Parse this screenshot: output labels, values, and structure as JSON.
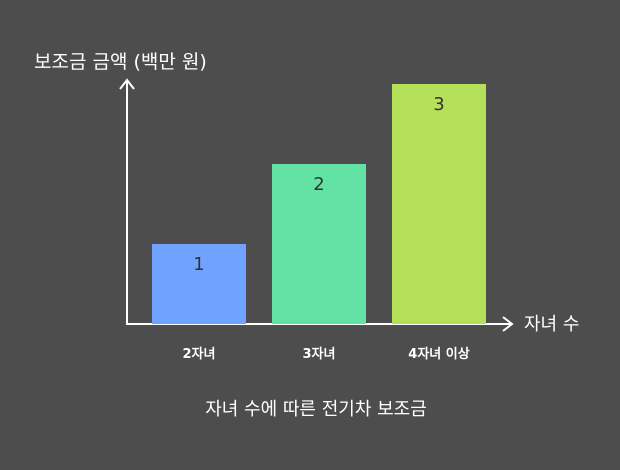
{
  "chart_data": {
    "type": "bar",
    "title": "자녀 수에 따른 전기차 보조금",
    "xlabel": "자녀 수",
    "ylabel": "보조금 금액 (백만 원)",
    "categories": [
      "2자녀",
      "3자녀",
      "4자녀 이상"
    ],
    "values": [
      1,
      2,
      3
    ],
    "data_labels": [
      "1",
      "2",
      "3"
    ],
    "bar_colors": [
      "#6fa3ff",
      "#62e3a5",
      "#b5e05a"
    ],
    "ylim": [
      0,
      3.6
    ],
    "grid": false,
    "legend": "none"
  },
  "colors": {
    "background": "#4d4d4d",
    "axis": "#ffffff",
    "text": "#ffffff",
    "value_label": "#333333"
  }
}
